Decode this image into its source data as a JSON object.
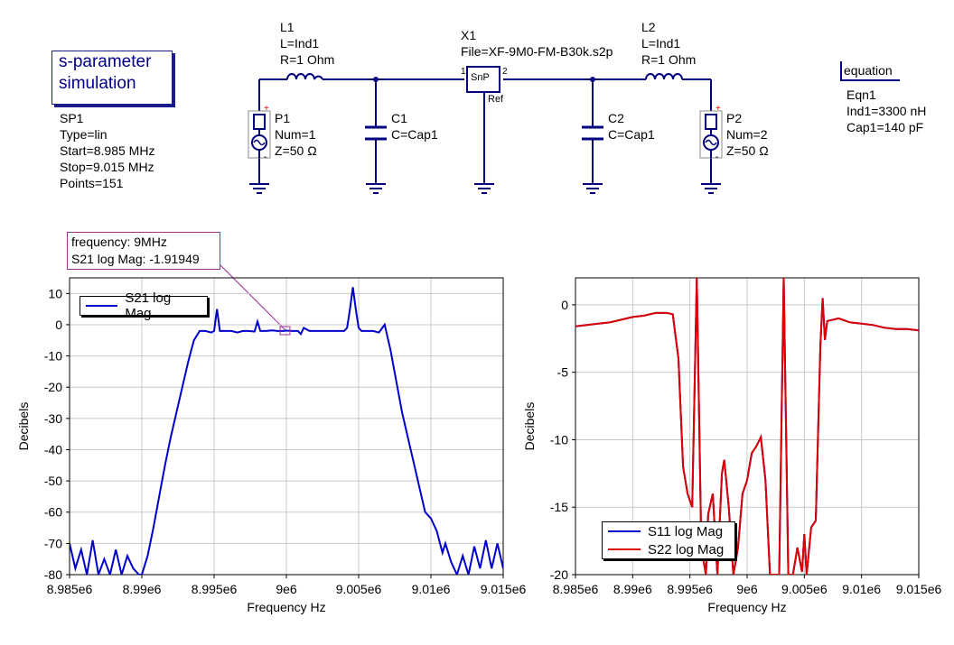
{
  "sim": {
    "title_line1": "s-parameter",
    "title_line2": "simulation",
    "name": "SP1",
    "type": "Type=lin",
    "start": "Start=8.985 MHz",
    "stop": "Stop=9.015 MHz",
    "points": "Points=151"
  },
  "components": {
    "L1": {
      "name": "L1",
      "l": "L=Ind1",
      "r": "R=1 Ohm"
    },
    "L2": {
      "name": "L2",
      "l": "L=Ind1",
      "r": "R=1 Ohm"
    },
    "C1": {
      "name": "C1",
      "c": "C=Cap1"
    },
    "C2": {
      "name": "C2",
      "c": "C=Cap1"
    },
    "X1": {
      "name": "X1",
      "file": "File=XF-9M0-FM-B30k.s2p",
      "symbol": "SnP",
      "pin1": "1",
      "pin2": "2",
      "ref": "Ref"
    },
    "P1": {
      "name": "P1",
      "num": "Num=1",
      "z": "Z=50 Ω"
    },
    "P2": {
      "name": "P2",
      "num": "Num=2",
      "z": "Z=50 Ω"
    }
  },
  "equation": {
    "header": "equation",
    "name": "Eqn1",
    "ind": "Ind1=3300 nH",
    "cap": "Cap1=140 pF"
  },
  "marker": {
    "line1": "frequency: 9MHz",
    "line2": "S21 log Mag: -1.91949"
  },
  "colors": {
    "blue": "#0000cc",
    "red": "#dd0000",
    "wire": "#00007f",
    "marker": "#a0309a"
  },
  "chart_data": [
    {
      "type": "line",
      "xlabel": "Frequency Hz",
      "ylabel": "Decibels",
      "xlim": [
        8.985,
        9.015
      ],
      "ylim": [
        -80,
        15
      ],
      "x_ticks": [
        8.985,
        8.99,
        8.995,
        9.0,
        9.005,
        9.01,
        9.015
      ],
      "x_tick_labels": [
        "8.985e6",
        "8.99e6",
        "8.995e6",
        "9e6",
        "9.005e6",
        "9.01e6",
        "9.015e6"
      ],
      "y_ticks": [
        10,
        0,
        -10,
        -20,
        -30,
        -40,
        -50,
        -60,
        -70,
        -80
      ],
      "y_tick_labels": [
        "10",
        "0",
        "-10",
        "-20",
        "-30",
        "-40",
        "-50",
        "-60",
        "-70",
        "-80"
      ],
      "grid": true,
      "legend": "top-left",
      "series": [
        {
          "name": "S21 log Mag",
          "color": "#0000cc",
          "x": [
            8.985,
            8.9854,
            8.9858,
            8.9862,
            8.9866,
            8.987,
            8.9874,
            8.9878,
            8.9882,
            8.9886,
            8.989,
            8.9894,
            8.9898,
            8.99,
            8.9904,
            8.9908,
            8.9912,
            8.9916,
            8.992,
            8.9924,
            8.9928,
            8.9932,
            8.9936,
            8.994,
            8.9944,
            8.9948,
            8.995,
            8.9952,
            8.9954,
            8.9958,
            8.9962,
            8.9966,
            8.997,
            8.9974,
            8.9978,
            8.998,
            8.9982,
            8.9986,
            8.999,
            8.9994,
            8.9998,
            9.0,
            9.0004,
            9.0008,
            9.001,
            9.0012,
            9.0016,
            9.002,
            9.0024,
            9.0028,
            9.0032,
            9.0036,
            9.004,
            9.0042,
            9.0044,
            9.0046,
            9.0048,
            9.005,
            9.0052,
            9.0056,
            9.006,
            9.0064,
            9.0068,
            9.0072,
            9.0076,
            9.008,
            9.0084,
            9.0088,
            9.0092,
            9.0096,
            9.01,
            9.0104,
            9.0108,
            9.011,
            9.0114,
            9.0118,
            9.0122,
            9.0126,
            9.013,
            9.0134,
            9.0138,
            9.0142,
            9.0146,
            9.015
          ],
          "y": [
            -70,
            -78,
            -72,
            -80,
            -69,
            -80,
            -75,
            -80,
            -72,
            -80,
            -74,
            -78,
            -80,
            -80,
            -74,
            -65,
            -55,
            -45,
            -36,
            -28,
            -20,
            -12,
            -5,
            -2,
            -2,
            -2.5,
            -2,
            5,
            -2,
            -2,
            -2,
            -2.5,
            -2,
            -2,
            -2.2,
            1,
            -2,
            -2,
            -1.8,
            -2,
            -2,
            -1.9,
            -2,
            -2,
            -3,
            -1,
            -2,
            -2,
            -2,
            -2,
            -2,
            -2,
            -2,
            -1,
            5,
            12,
            5,
            -1,
            -2,
            -2,
            -2,
            -2.5,
            0,
            -8,
            -18,
            -28,
            -36,
            -44,
            -52,
            -60,
            -62,
            -66,
            -73,
            -70,
            -76,
            -80,
            -74,
            -80,
            -71,
            -78,
            -69,
            -78,
            -70,
            -78
          ]
        }
      ]
    },
    {
      "type": "line",
      "xlabel": "Frequency Hz",
      "ylabel": "Decibels",
      "xlim": [
        8.985,
        9.015
      ],
      "ylim": [
        -20,
        2
      ],
      "x_ticks": [
        8.985,
        8.99,
        8.995,
        9.0,
        9.005,
        9.01,
        9.015
      ],
      "x_tick_labels": [
        "8.985e6",
        "8.99e6",
        "8.995e6",
        "9e6",
        "9.005e6",
        "9.01e6",
        "9.015e6"
      ],
      "y_ticks": [
        0,
        -5,
        -10,
        -15,
        -20
      ],
      "y_tick_labels": [
        "0",
        "-5",
        "-10",
        "-15",
        "-20"
      ],
      "grid": true,
      "legend": "bottom-left",
      "series": [
        {
          "name": "S11 log Mag",
          "color": "#0000cc",
          "x": [
            8.985,
            8.986,
            8.987,
            8.988,
            8.989,
            8.99,
            8.991,
            8.992,
            8.993,
            8.9935,
            8.994,
            8.9944,
            8.9948,
            8.9952,
            8.9956,
            8.996,
            8.9964,
            8.9966,
            8.997,
            8.9974,
            8.9978,
            8.998,
            8.9984,
            8.9988,
            8.9992,
            8.9996,
            9.0,
            9.0004,
            9.0008,
            9.0012,
            9.0016,
            9.002,
            9.0024,
            9.0028,
            9.0032,
            9.0036,
            9.004,
            9.0044,
            9.0048,
            9.005,
            9.0052,
            9.0056,
            9.006,
            9.0064,
            9.0066,
            9.0068,
            9.007,
            9.008,
            9.009,
            9.01,
            9.011,
            9.012,
            9.013,
            9.014,
            9.015
          ],
          "y": [
            -1.6,
            -1.5,
            -1.4,
            -1.3,
            -1.1,
            -0.9,
            -0.8,
            -0.6,
            -0.6,
            -0.7,
            -4,
            -12,
            -14,
            -15,
            2,
            -18,
            -20,
            -15.5,
            -14,
            -20,
            -12.5,
            -11.5,
            -15,
            -20,
            -18,
            -14,
            -13,
            -11,
            -10.5,
            -9.8,
            -13,
            -20,
            -20,
            -20,
            2,
            -20,
            -20,
            -18,
            -19.8,
            -17,
            -20,
            -16.5,
            -16,
            -3,
            0.5,
            -2.6,
            -1.2,
            -1,
            -1.3,
            -1.4,
            -1.5,
            -1.7,
            -1.8,
            -1.8,
            -1.9
          ]
        },
        {
          "name": "S22 log Mag",
          "color": "#dd0000",
          "x": [
            8.985,
            8.986,
            8.987,
            8.988,
            8.989,
            8.99,
            8.991,
            8.992,
            8.993,
            8.9935,
            8.994,
            8.9944,
            8.9948,
            8.9952,
            8.9956,
            8.996,
            8.9964,
            8.9966,
            8.997,
            8.9974,
            8.9978,
            8.998,
            8.9984,
            8.9988,
            8.9992,
            8.9996,
            9.0,
            9.0004,
            9.0008,
            9.0012,
            9.0016,
            9.002,
            9.0024,
            9.0028,
            9.0032,
            9.0036,
            9.004,
            9.0044,
            9.0048,
            9.005,
            9.0052,
            9.0056,
            9.006,
            9.0064,
            9.0066,
            9.0068,
            9.007,
            9.008,
            9.009,
            9.01,
            9.011,
            9.012,
            9.013,
            9.014,
            9.015
          ],
          "y": [
            -1.6,
            -1.5,
            -1.4,
            -1.3,
            -1.1,
            -0.9,
            -0.8,
            -0.6,
            -0.6,
            -0.7,
            -4,
            -12,
            -14,
            -15,
            2,
            -18,
            -20,
            -15.5,
            -14,
            -20,
            -12.5,
            -11.5,
            -15,
            -20,
            -18,
            -14,
            -13,
            -11,
            -10.5,
            -9.8,
            -13,
            -20,
            -20,
            -20,
            2,
            -20,
            -20,
            -18,
            -19.8,
            -17,
            -20,
            -16.5,
            -16,
            -3,
            0.5,
            -2.6,
            -1.2,
            -1,
            -1.3,
            -1.4,
            -1.5,
            -1.7,
            -1.8,
            -1.8,
            -1.9
          ]
        }
      ]
    }
  ]
}
